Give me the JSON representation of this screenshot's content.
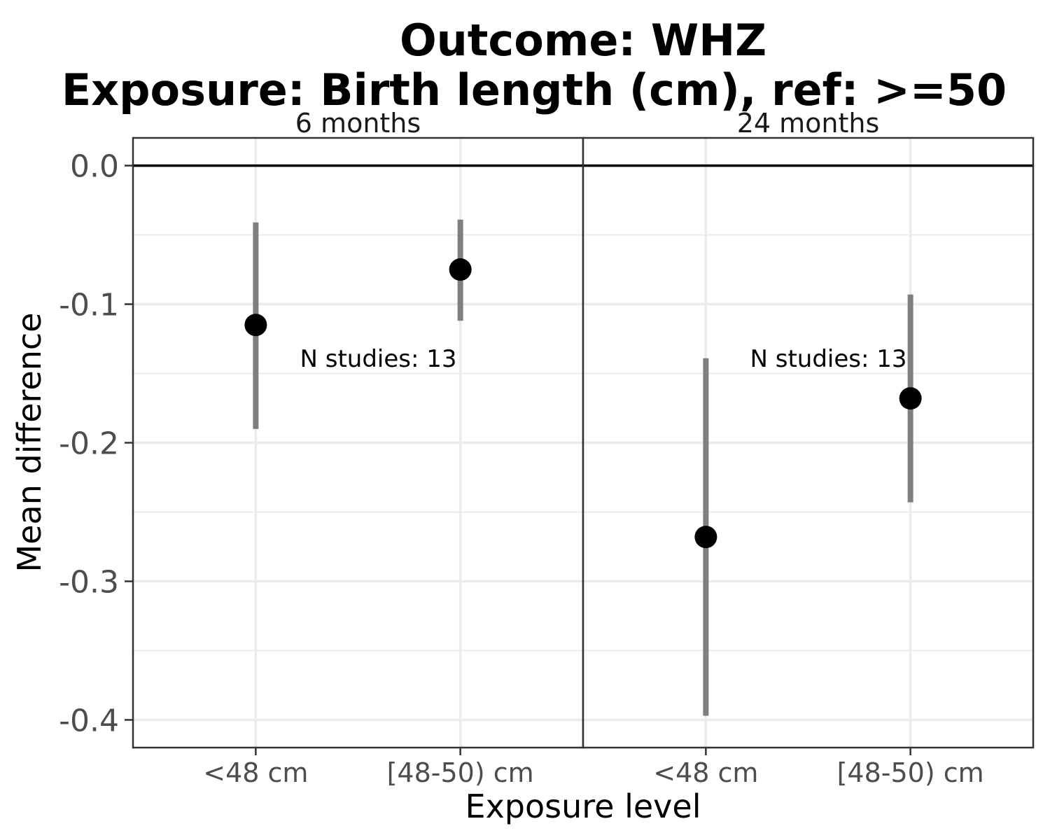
{
  "chart_data": {
    "type": "scatter",
    "subtype": "point-range",
    "title_lines": [
      "Outcome: WHZ",
      "Exposure: Birth length (cm), ref: >=50"
    ],
    "xlabel": "Exposure level",
    "ylabel": "Mean difference",
    "ylim": [
      -0.42,
      0.02
    ],
    "yticks": [
      0.0,
      -0.1,
      -0.2,
      -0.3,
      -0.4
    ],
    "ytick_labels": [
      "0.0",
      "-0.1",
      "-0.2",
      "-0.3",
      "-0.4"
    ],
    "categories": [
      "<48 cm",
      "[48-50) cm"
    ],
    "reference_line_y": 0,
    "grid": true,
    "point_color": "#000000",
    "interval_color": "#7f7f7f",
    "panels": [
      {
        "strip_label": "6 months",
        "annotation": "N studies: 13",
        "points": [
          {
            "category": "<48 cm",
            "estimate": -0.115,
            "lower": -0.19,
            "upper": -0.041
          },
          {
            "category": "[48-50) cm",
            "estimate": -0.075,
            "lower": -0.112,
            "upper": -0.039
          }
        ]
      },
      {
        "strip_label": "24 months",
        "annotation": "N studies: 13",
        "points": [
          {
            "category": "<48 cm",
            "estimate": -0.268,
            "lower": -0.397,
            "upper": -0.139
          },
          {
            "category": "[48-50) cm",
            "estimate": -0.168,
            "lower": -0.243,
            "upper": -0.093
          }
        ]
      }
    ]
  }
}
